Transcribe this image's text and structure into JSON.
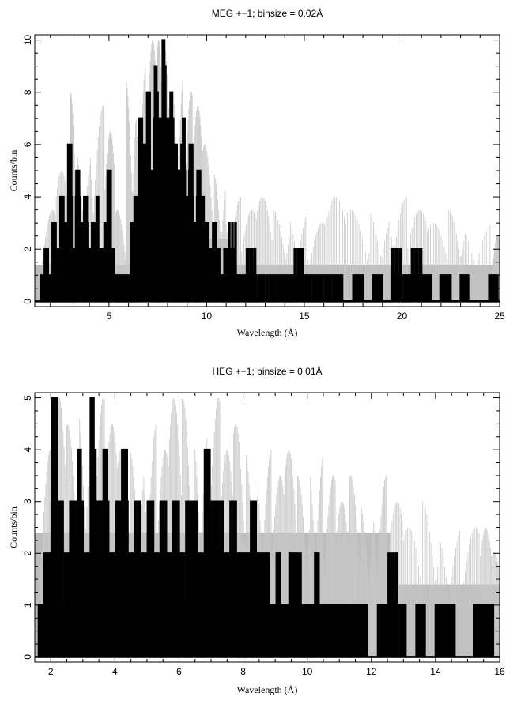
{
  "chart_data": [
    {
      "type": "line",
      "title": "MEG +−1; binsize = 0.02Å",
      "xlabel": "Wavelength (Å)",
      "ylabel": "Counts/bin",
      "xlim": [
        1.2,
        25
      ],
      "ylim": [
        -0.2,
        10.2
      ],
      "xticks": [
        5,
        10,
        15,
        20,
        25
      ],
      "yticks": [
        0,
        2,
        4,
        6,
        8,
        10
      ],
      "grid": false,
      "series": [
        {
          "style": "gray-band",
          "x": [
            1.2,
            7.0,
            7.0,
            11.2,
            11.2,
            25.0
          ],
          "lower": [
            0,
            0,
            0.4,
            0.4,
            0,
            0
          ],
          "upper": [
            1.4,
            1.4,
            2.4,
            2.4,
            1.4,
            1.4
          ]
        },
        {
          "style": "thin-gray",
          "x": [
            1.6,
            2.3,
            3.0,
            3.4,
            4.1,
            4.8,
            5.3,
            5.9,
            6.4,
            6.9,
            7.4,
            7.8,
            8.3,
            8.8,
            9.3,
            9.8,
            10.4,
            11.0,
            11.8,
            12.6,
            13.4,
            14.3,
            15.2,
            16.1,
            17.2,
            18.4,
            19.4,
            20.3,
            21.3,
            22.4,
            23.3,
            24.6
          ],
          "values": [
            3.5,
            5.0,
            8.0,
            6.0,
            7.5,
            6.5,
            3.5,
            8.5,
            9.0,
            10.0,
            10.0,
            10.0,
            9.0,
            8.0,
            7.5,
            6.0,
            5.0,
            4.0,
            3.5,
            4.0,
            3.5,
            3.5,
            3.0,
            4.0,
            3.5,
            3.5,
            4.0,
            3.5,
            3.0,
            3.5,
            3.0,
            2.5
          ]
        },
        {
          "style": "thick-black",
          "x": [
            1.5,
            1.7,
            1.9,
            2.1,
            2.3,
            2.5,
            2.7,
            2.9,
            3.1,
            3.3,
            3.5,
            3.7,
            3.9,
            4.1,
            4.3,
            4.5,
            4.7,
            4.9,
            5.1,
            5.3,
            5.5,
            5.7,
            5.9,
            6.1,
            6.3,
            6.5,
            6.7,
            6.9,
            7.1,
            7.3,
            7.5,
            7.7,
            7.9,
            8.1,
            8.3,
            8.5,
            8.7,
            8.9,
            9.1,
            9.3,
            9.5,
            9.7,
            9.9,
            10.1,
            10.3,
            10.5,
            10.7,
            10.9,
            11.1,
            11.5,
            12.0,
            12.5,
            13.0,
            13.5,
            14.0,
            14.5,
            15.0,
            15.5,
            16.0,
            16.5,
            17.0,
            17.5,
            18.0,
            18.5,
            19.0,
            19.5,
            20.0,
            20.5,
            21.0,
            21.5,
            22.0,
            22.5,
            23.0,
            23.5,
            24.0,
            24.5
          ],
          "values": [
            1,
            2,
            1,
            3,
            2,
            4,
            3,
            6,
            2,
            5,
            3,
            4,
            2,
            3,
            4,
            2,
            3,
            5,
            2,
            1,
            1,
            1,
            1,
            3,
            4,
            7,
            6,
            8,
            5,
            9,
            7,
            10,
            7,
            8,
            6,
            5,
            7,
            4,
            6,
            3,
            5,
            4,
            3,
            2,
            3,
            2,
            1,
            2,
            3,
            1,
            2,
            1,
            1,
            1,
            1,
            2,
            1,
            1,
            1,
            1,
            0,
            1,
            0,
            1,
            0,
            2,
            1,
            2,
            1,
            0,
            1,
            0,
            1,
            0,
            0,
            1
          ]
        }
      ]
    },
    {
      "type": "line",
      "title": "HEG +−1; binsize = 0.01Å",
      "xlabel": "Wavelength (Å)",
      "ylabel": "Counts/bin",
      "xlim": [
        1.5,
        16
      ],
      "ylim": [
        -0.1,
        5.1
      ],
      "xticks": [
        2,
        4,
        6,
        8,
        10,
        12,
        14,
        16
      ],
      "yticks": [
        0,
        1,
        2,
        3,
        4,
        5
      ],
      "grid": false,
      "series": [
        {
          "style": "gray-band",
          "x": [
            1.5,
            12.6,
            12.6,
            16.0
          ],
          "lower": [
            0,
            0,
            0,
            0
          ],
          "upper": [
            2.4,
            2.4,
            1.4,
            1.4
          ]
        },
        {
          "style": "thin-gray",
          "x": [
            1.7,
            2.1,
            2.5,
            2.9,
            3.3,
            3.7,
            4.1,
            4.5,
            4.9,
            5.3,
            5.7,
            6.1,
            6.5,
            6.9,
            7.3,
            7.7,
            8.1,
            8.5,
            8.9,
            9.3,
            9.7,
            10.1,
            10.5,
            10.9,
            11.3,
            11.7,
            12.1,
            12.5,
            13.0,
            13.6,
            14.2,
            14.8,
            15.4,
            15.8
          ],
          "values": [
            4.0,
            5.0,
            4.5,
            5.0,
            5.0,
            4.5,
            4.0,
            4.0,
            4.5,
            4.0,
            5.0,
            5.0,
            4.5,
            5.0,
            4.0,
            4.5,
            4.0,
            4.0,
            3.5,
            4.0,
            3.5,
            4.0,
            3.5,
            3.0,
            3.5,
            3.0,
            3.5,
            3.0,
            2.5,
            3.0,
            2.5,
            2.5,
            2.5,
            2.0
          ]
        },
        {
          "style": "thick-black",
          "x": [
            1.6,
            1.8,
            2.0,
            2.2,
            2.4,
            2.6,
            2.8,
            3.0,
            3.2,
            3.4,
            3.6,
            3.8,
            4.0,
            4.2,
            4.4,
            4.6,
            4.8,
            5.0,
            5.2,
            5.4,
            5.6,
            5.8,
            6.0,
            6.2,
            6.4,
            6.6,
            6.8,
            7.0,
            7.2,
            7.4,
            7.6,
            7.8,
            8.0,
            8.2,
            8.4,
            8.6,
            8.8,
            9.0,
            9.2,
            9.4,
            9.6,
            9.8,
            10.0,
            10.2,
            10.4,
            10.6,
            10.8,
            11.0,
            11.3,
            11.6,
            11.9,
            12.2,
            12.5,
            12.8,
            13.1,
            13.4,
            13.7,
            14.0,
            14.3,
            14.6,
            14.9,
            15.2,
            15.5,
            15.8
          ],
          "values": [
            1,
            2,
            5,
            3,
            2,
            3,
            4,
            2,
            5,
            3,
            4,
            2,
            3,
            4,
            2,
            3,
            2,
            3,
            2,
            3,
            2,
            3,
            2,
            3,
            3,
            2,
            4,
            3,
            3,
            2,
            3,
            2,
            2,
            3,
            2,
            2,
            1,
            2,
            1,
            2,
            2,
            1,
            1,
            2,
            1,
            1,
            1,
            1,
            1,
            1,
            0,
            1,
            2,
            1,
            0,
            1,
            0,
            1,
            1,
            0,
            0,
            1,
            1,
            0
          ]
        }
      ]
    }
  ]
}
